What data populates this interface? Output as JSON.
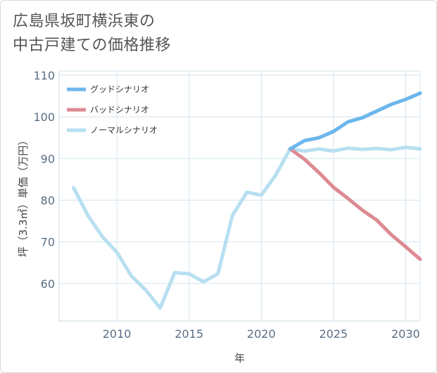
{
  "chart_data": {
    "type": "line",
    "title_line1": "広島県坂町横浜東の",
    "title_line2": "中古戸建ての価格推移",
    "xlabel": "年",
    "ylabel": "坪（3.3㎡）単価（万円）",
    "xlim": [
      2006,
      2031
    ],
    "ylim": [
      51,
      111
    ],
    "xticks": [
      2010,
      2015,
      2020,
      2025,
      2030
    ],
    "yticks": [
      60,
      70,
      80,
      90,
      100,
      110
    ],
    "series": [
      {
        "name": "グッドシナリオ",
        "color": "#6bb6ec",
        "x": [
          2022,
          2023,
          2024,
          2025,
          2026,
          2027,
          2028,
          2029,
          2030,
          2031
        ],
        "y": [
          92.3,
          94.3,
          95.0,
          96.5,
          98.8,
          99.8,
          101.4,
          103.0,
          104.2,
          105.7
        ]
      },
      {
        "name": "バッドシナリオ",
        "color": "#dd8a92",
        "x": [
          2022,
          2023,
          2024,
          2025,
          2026,
          2027,
          2028,
          2029,
          2030,
          2031
        ],
        "y": [
          92.3,
          89.8,
          86.6,
          83.1,
          80.4,
          77.6,
          75.2,
          71.7,
          68.8,
          65.8
        ]
      },
      {
        "name": "ノーマルシナリオ",
        "color": "#b7dff0",
        "x": [
          2007,
          2008,
          2009,
          2010,
          2011,
          2012,
          2013,
          2014,
          2015,
          2016,
          2017,
          2018,
          2019,
          2020,
          2021,
          2022,
          2023,
          2024,
          2025,
          2026,
          2027,
          2028,
          2029,
          2030,
          2031
        ],
        "y": [
          83.0,
          76.3,
          71.2,
          67.5,
          61.8,
          58.4,
          54.1,
          62.6,
          62.3,
          60.4,
          62.3,
          76.3,
          81.9,
          81.2,
          86.0,
          92.3,
          91.8,
          92.3,
          91.8,
          92.5,
          92.2,
          92.4,
          92.1,
          92.7,
          92.3
        ]
      }
    ]
  }
}
